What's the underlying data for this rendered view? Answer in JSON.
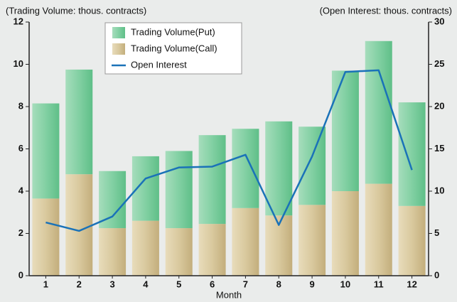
{
  "chart_data": {
    "type": "bar",
    "stacked": true,
    "y_axis_label": "(Trading Volume: thous. contracts)",
    "y2_axis_label": "(Open Interest: thous. contracts)",
    "x_axis_label": "Month",
    "categories": [
      "1",
      "2",
      "3",
      "4",
      "5",
      "6",
      "7",
      "8",
      "9",
      "10",
      "11",
      "12"
    ],
    "series": [
      {
        "name": "Trading Volume(Put)",
        "type": "bar",
        "color": "#7fcfa0",
        "values": [
          4.5,
          4.95,
          2.7,
          3.05,
          3.65,
          4.2,
          3.75,
          4.45,
          3.7,
          5.7,
          6.75,
          4.9
        ]
      },
      {
        "name": "Trading Volume(Call)",
        "type": "bar",
        "color": "#d9c99e",
        "values": [
          3.65,
          4.8,
          2.25,
          2.6,
          2.25,
          2.45,
          3.2,
          2.85,
          3.35,
          4.0,
          4.35,
          3.3
        ]
      },
      {
        "name": "Open Interest",
        "type": "line",
        "axis": "y2",
        "color": "#1a72b8",
        "values": [
          6.3,
          5.3,
          7.0,
          11.5,
          12.8,
          12.9,
          14.3,
          6.0,
          14.1,
          24.1,
          24.3,
          12.5
        ]
      }
    ],
    "ylim": [
      0,
      12
    ],
    "yticks": [
      0,
      2,
      4,
      6,
      8,
      10,
      12
    ],
    "y2lim": [
      0,
      30
    ],
    "y2ticks": [
      0,
      5,
      10,
      15,
      20,
      25,
      30
    ]
  }
}
